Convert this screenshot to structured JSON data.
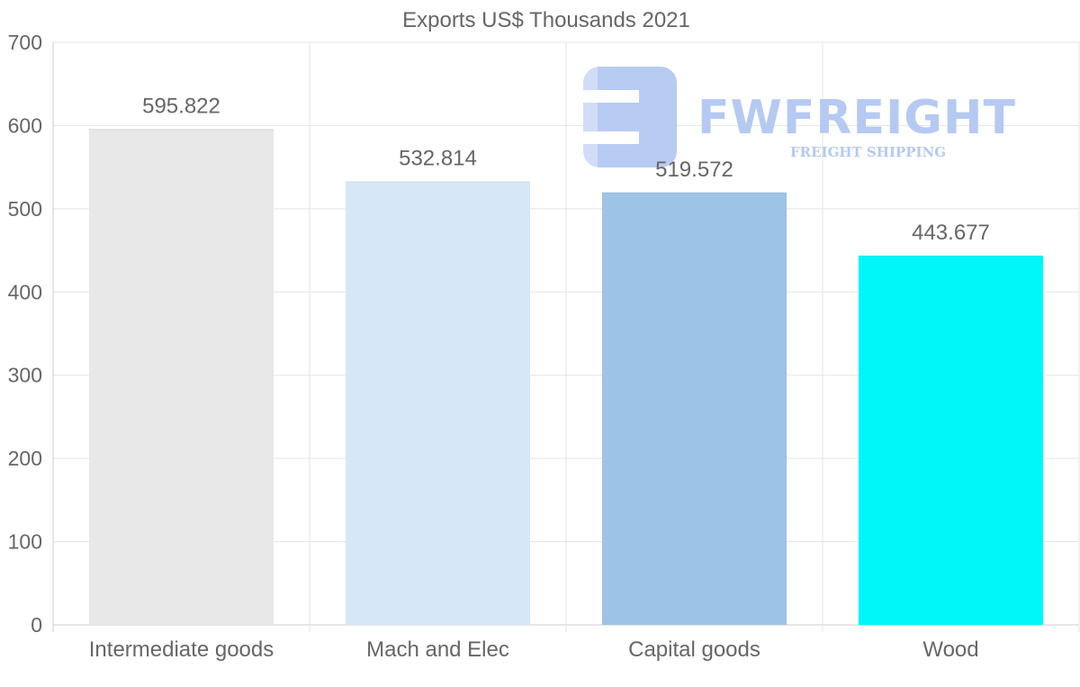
{
  "chart_data": {
    "type": "bar",
    "title": "Exports US$ Thousands 2021",
    "categories": [
      "Intermediate goods",
      "Mach and Elec",
      "Capital goods",
      "Wood"
    ],
    "values": [
      595.822,
      532.814,
      519.572,
      443.677
    ],
    "value_labels": [
      "595.822",
      "532.814",
      "519.572",
      "443.677"
    ],
    "bar_colors": [
      "#e8e8e8",
      "#d6e8f8",
      "#9dc3e6",
      "#00f7f7"
    ],
    "ylim": [
      0,
      700
    ],
    "yticks": [
      0,
      100,
      200,
      300,
      400,
      500,
      600,
      700
    ],
    "xlabel": "",
    "ylabel": "",
    "grid": true,
    "legend": "none"
  },
  "watermark": {
    "brand": "FWFREIGHT",
    "tagline": "FREIGHT SHIPPING",
    "color": "#b5c9f2"
  }
}
